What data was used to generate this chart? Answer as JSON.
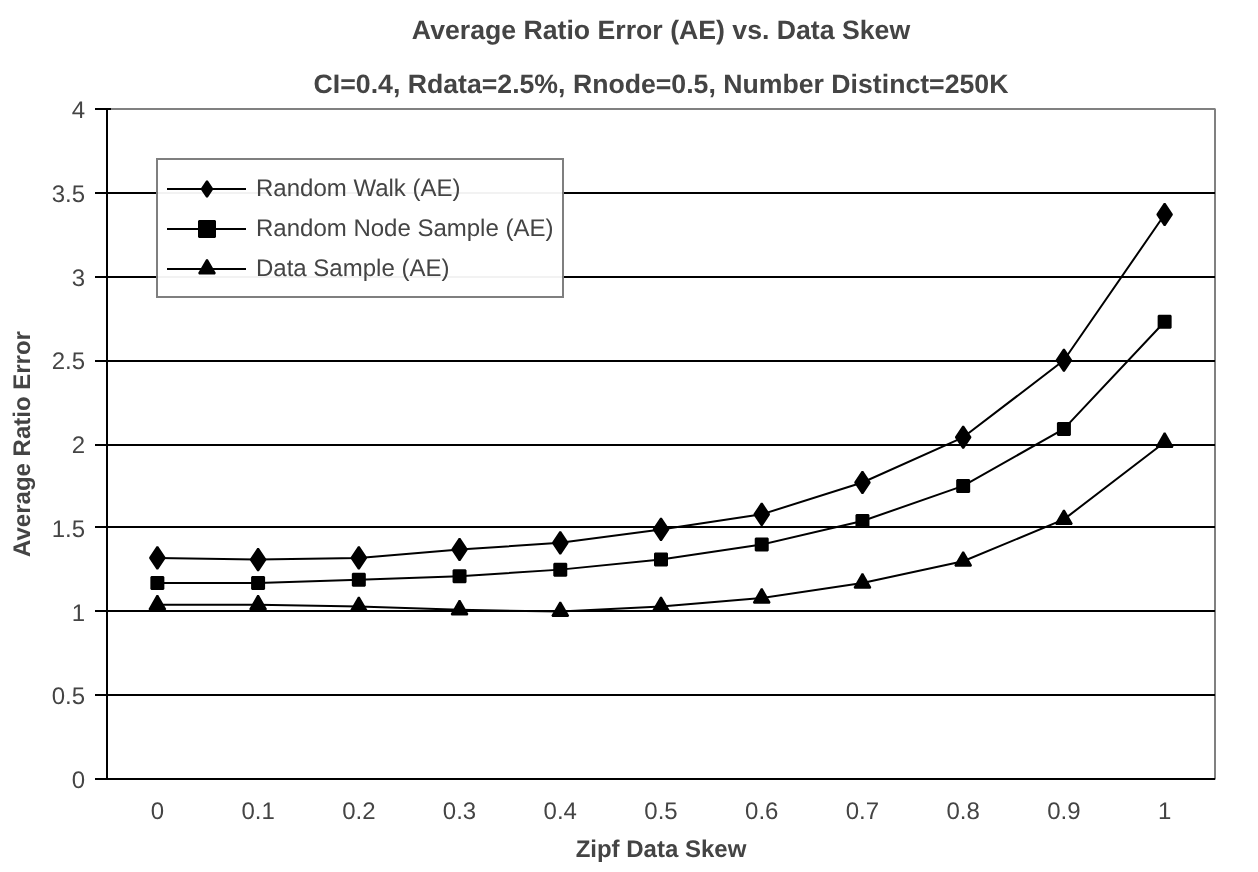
{
  "chart_data": {
    "type": "line",
    "title": "Average Ratio Error (AE) vs. Data Skew",
    "subtitle": "CI=0.4, Rdata=2.5%, Rnode=0.5, Number Distinct=250K",
    "xlabel": "Zipf Data Skew",
    "ylabel": "Average Ratio Error",
    "categories": [
      "0",
      "0.1",
      "0.2",
      "0.3",
      "0.4",
      "0.5",
      "0.6",
      "0.7",
      "0.8",
      "0.9",
      "1"
    ],
    "series": [
      {
        "name": "Random Walk (AE)",
        "color": "#000000",
        "marker": "diamond",
        "values": [
          1.32,
          1.31,
          1.32,
          1.37,
          1.41,
          1.49,
          1.58,
          1.77,
          2.04,
          2.5,
          3.37
        ]
      },
      {
        "name": "Random Node Sample (AE)",
        "color": "#000000",
        "marker": "square",
        "values": [
          1.17,
          1.17,
          1.19,
          1.21,
          1.25,
          1.31,
          1.4,
          1.54,
          1.75,
          2.09,
          2.73
        ]
      },
      {
        "name": "Data Sample (AE)",
        "color": "#000000",
        "marker": "triangle",
        "values": [
          1.04,
          1.04,
          1.03,
          1.01,
          1.0,
          1.03,
          1.08,
          1.17,
          1.3,
          1.55,
          2.01
        ]
      }
    ],
    "ylim": [
      0,
      4
    ],
    "yticks": [
      0,
      0.5,
      1,
      1.5,
      2,
      2.5,
      3,
      3.5,
      4
    ],
    "grid": "y",
    "legend": "top left",
    "line_style": "solid"
  }
}
